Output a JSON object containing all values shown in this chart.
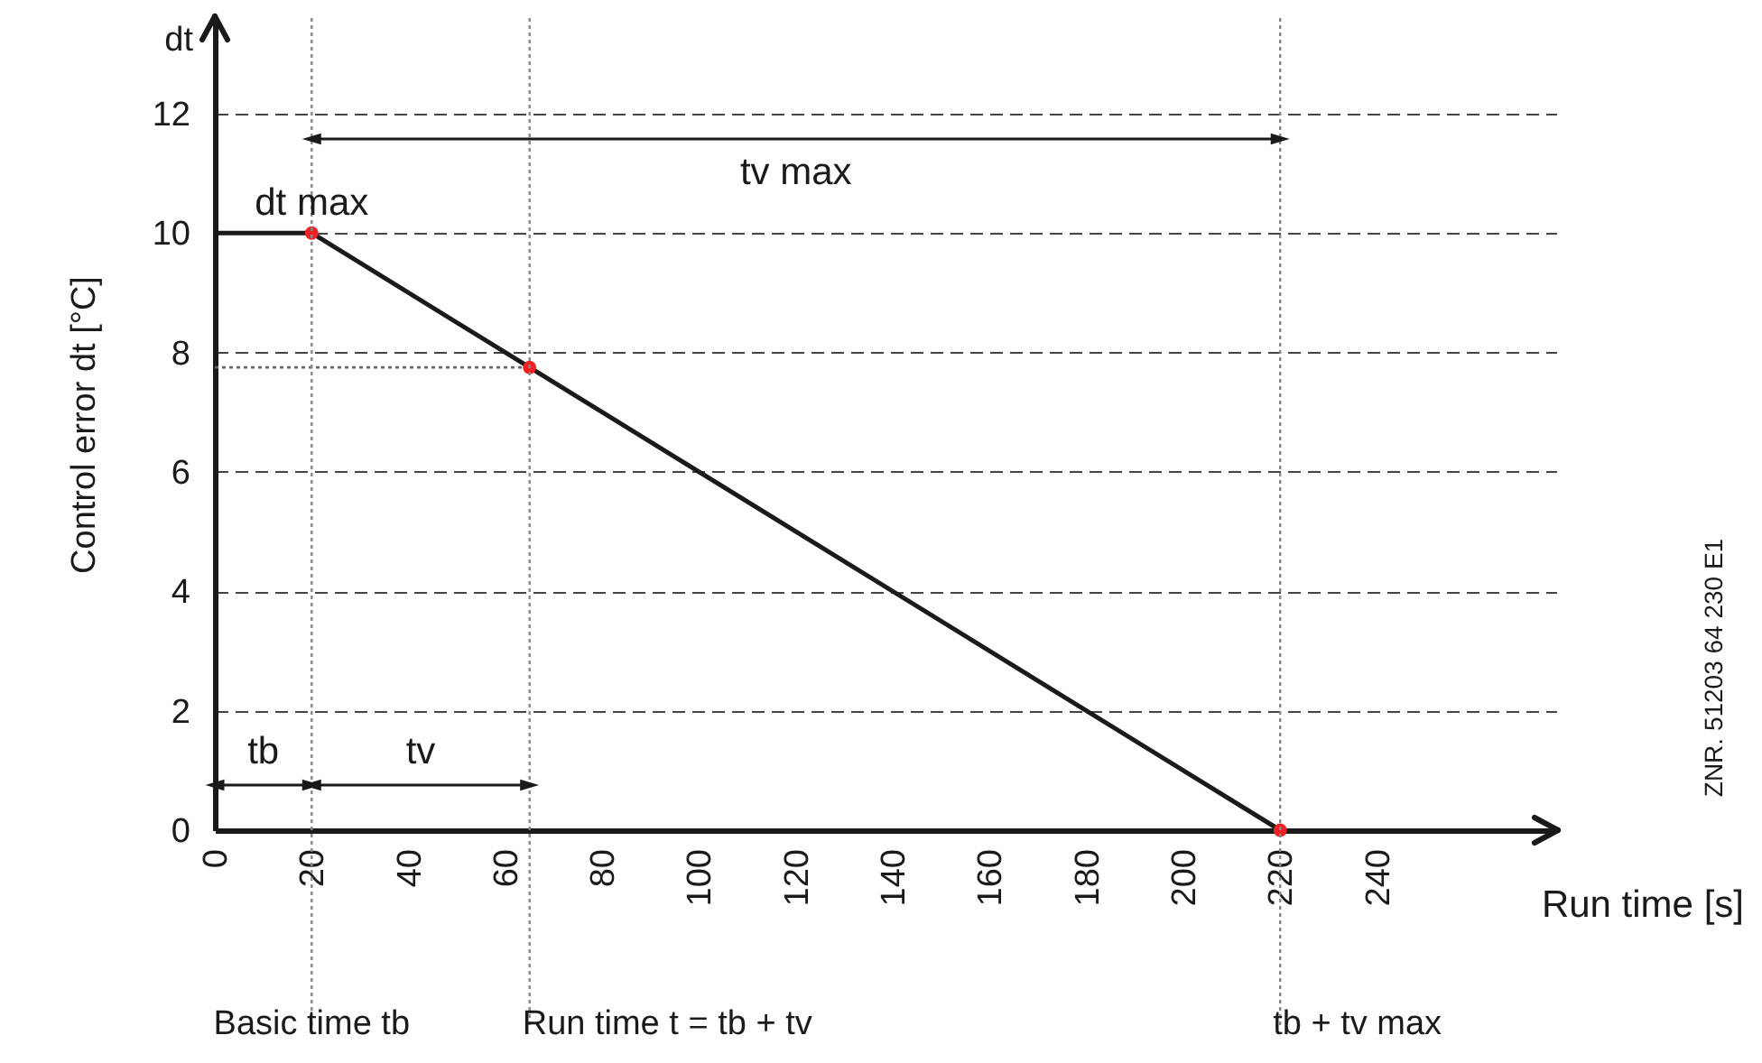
{
  "chart_data": {
    "type": "line",
    "xlabel": "Run time [s]",
    "ylabel": "Control error dt [°C]",
    "xlim": [
      0,
      277
    ],
    "ylim": [
      0,
      13.6
    ],
    "xticks": [
      0,
      20,
      40,
      60,
      80,
      100,
      120,
      140,
      160,
      180,
      200,
      220,
      240
    ],
    "yticks": [
      0,
      2,
      4,
      6,
      8,
      10,
      12
    ],
    "grid": "y",
    "series": [
      {
        "type": "line",
        "color": "#1a1a1a",
        "x": [
          0,
          20,
          65,
          220
        ],
        "values": [
          10,
          10,
          7.75,
          0
        ]
      },
      {
        "type": "line",
        "color": "#666666",
        "line_style": "dotted",
        "x": [
          0,
          65
        ],
        "values": [
          7.75,
          7.75
        ]
      },
      {
        "type": "scatter",
        "color": "#ee2222",
        "marker": "circle",
        "x": [
          20,
          65,
          220
        ],
        "values": [
          10,
          7.75,
          0
        ]
      }
    ],
    "ref_lines": [
      {
        "axis": "x",
        "value": 20,
        "label": "Basic time tb",
        "line_style": "dotted",
        "color": "#888888"
      },
      {
        "axis": "x",
        "value": 65,
        "label": "Run time t = tb + tv",
        "line_style": "dotted",
        "color": "#888888"
      },
      {
        "axis": "x",
        "value": 220,
        "label": "tb + tv max",
        "line_style": "dotted",
        "color": "#888888"
      }
    ],
    "annotations": [
      {
        "text": "dt max",
        "x": 20,
        "y": 10
      },
      "tv max",
      "tb",
      "tv",
      "dt",
      "ZNR. 51203 64 230 E1"
    ]
  }
}
